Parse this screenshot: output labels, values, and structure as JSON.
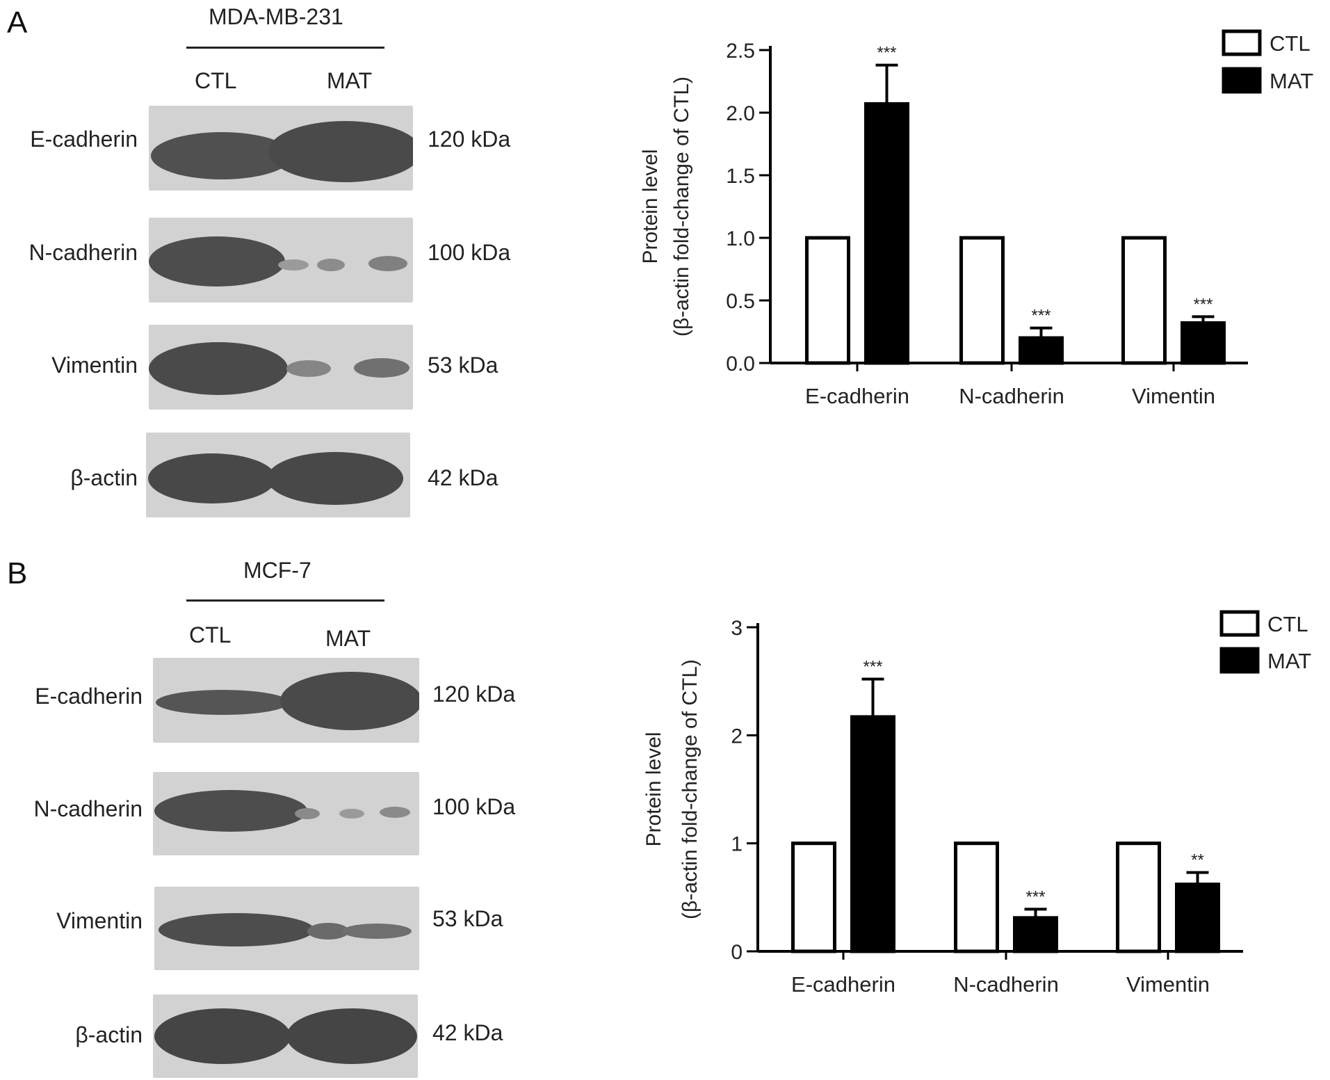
{
  "panels": [
    {
      "letter": "A",
      "cell_line": "MDA-MB-231",
      "lanes": [
        "CTL",
        "MAT"
      ],
      "blots": [
        {
          "protein": "E-cadherin",
          "size": "120 kDa"
        },
        {
          "protein": "N-cadherin",
          "size": "100 kDa"
        },
        {
          "protein": "Vimentin",
          "size": "53 kDa"
        },
        {
          "protein": "β-actin",
          "size": "42 kDa"
        }
      ]
    },
    {
      "letter": "B",
      "cell_line": "MCF-7",
      "lanes": [
        "CTL",
        "MAT"
      ],
      "blots": [
        {
          "protein": "E-cadherin",
          "size": "120 kDa"
        },
        {
          "protein": "N-cadherin",
          "size": "100 kDa"
        },
        {
          "protein": "Vimentin",
          "size": "53 kDa"
        },
        {
          "protein": "β-actin",
          "size": "42 kDa"
        }
      ]
    }
  ],
  "chart_data": [
    {
      "type": "bar",
      "ylabel": [
        "Protein level",
        "(β-actin fold-change of CTL)"
      ],
      "ylim": [
        0,
        2.5
      ],
      "yticks": [
        0.0,
        0.5,
        1.0,
        1.5,
        2.0,
        2.5
      ],
      "ytick_labels": [
        "0.0",
        "0.5",
        "1.0",
        "1.5",
        "2.0",
        "2.5"
      ],
      "categories": [
        "E-cadherin",
        "N-cadherin",
        "Vimentin"
      ],
      "series": [
        {
          "name": "CTL",
          "values": [
            1.0,
            1.0,
            1.0
          ],
          "errors": [
            0,
            0,
            0
          ],
          "sig": [
            "",
            "",
            ""
          ],
          "fill": "#ffffff"
        },
        {
          "name": "MAT",
          "values": [
            2.07,
            0.2,
            0.32
          ],
          "errors": [
            0.31,
            0.08,
            0.05
          ],
          "sig": [
            "***",
            "***",
            "***"
          ],
          "fill": "#000000"
        }
      ],
      "legend": "top-right",
      "grid": false
    },
    {
      "type": "bar",
      "ylabel": [
        "Protein level",
        "(β-actin fold-change of CTL)"
      ],
      "ylim": [
        0,
        3
      ],
      "yticks": [
        0,
        1,
        2,
        3
      ],
      "ytick_labels": [
        "0",
        "1",
        "2",
        "3"
      ],
      "categories": [
        "E-cadherin",
        "N-cadherin",
        "Vimentin"
      ],
      "series": [
        {
          "name": "CTL",
          "values": [
            1.0,
            1.0,
            1.0
          ],
          "errors": [
            0,
            0,
            0
          ],
          "sig": [
            "",
            "",
            ""
          ],
          "fill": "#ffffff"
        },
        {
          "name": "MAT",
          "values": [
            2.17,
            0.31,
            0.62
          ],
          "errors": [
            0.35,
            0.08,
            0.11
          ],
          "sig": [
            "***",
            "***",
            "**"
          ],
          "fill": "#000000"
        }
      ],
      "legend": "top-right",
      "grid": false
    }
  ]
}
